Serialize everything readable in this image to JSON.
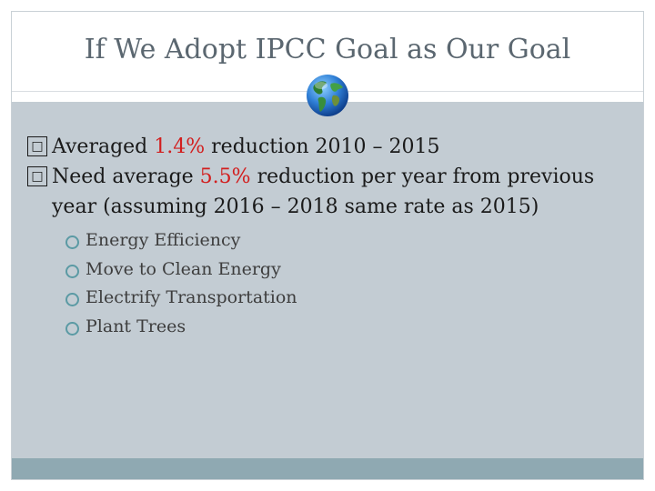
{
  "slide": {
    "title": "If We Adopt IPCC Goal as Our Goal",
    "bullet_glyph": "□",
    "bullets": [
      {
        "prefix": "Averaged ",
        "highlight": "1.4%",
        "suffix": " reduction 2010 – 2015"
      },
      {
        "prefix": "Need average ",
        "highlight": "5.5%",
        "suffix": " reduction per year from previous year (assuming 2016 – 2018 same rate as 2015)"
      }
    ],
    "sub_bullets": [
      "Energy Efficiency",
      "Move to Clean Energy",
      "Electrify Transportation",
      "Plant Trees"
    ]
  },
  "icons": {
    "globe": "globe-icon"
  },
  "colors": {
    "highlight": "#d21e1e",
    "content_bg": "#c3ccd3",
    "bottom_band": "#8fa9b2",
    "sub_ring": "#5b9aa4",
    "title": "#5b6770"
  }
}
